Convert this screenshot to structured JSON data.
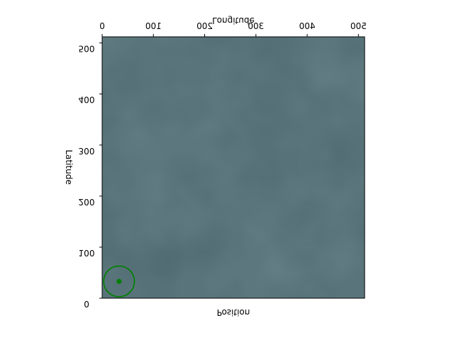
{
  "chart_data": {
    "type": "scatter",
    "title": "",
    "top_axis_label": "Longitude",
    "bottom_axis_label": "Position",
    "left_axis_label": "Latitude",
    "xlim": [
      0,
      512
    ],
    "ylim": [
      0,
      512
    ],
    "x_ticks": [
      0,
      100,
      200,
      300,
      400,
      500
    ],
    "y_ticks": [
      0,
      100,
      200,
      300,
      400,
      500
    ],
    "x_ticks_labels": [
      "0",
      "100",
      "200",
      "300",
      "400",
      "500"
    ],
    "y_ticks_labels": [
      "0",
      "100",
      "200",
      "300",
      "400",
      "500"
    ],
    "image_base_color": "#4e6a70",
    "marker_color": "#008000",
    "points": [
      {
        "x": 33,
        "y": 33
      }
    ],
    "circles": [
      {
        "cx": 33,
        "cy": 33,
        "r": 30
      }
    ],
    "text_mirrored": true,
    "grid": false
  }
}
